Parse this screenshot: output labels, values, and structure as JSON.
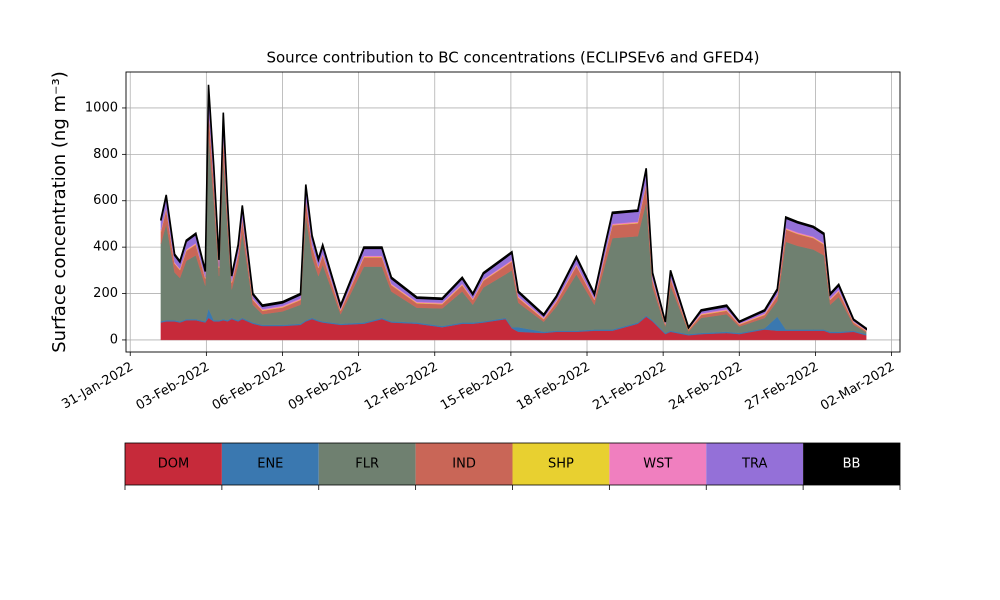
{
  "chart_data": {
    "type": "stacked_area",
    "title": "Source contribution to BC concentrations (ECLIPSEv6 and GFED4)",
    "y_label": "Surface concentration (ng m⁻³)",
    "x": [
      "2022-02-01 05:00",
      "2022-02-01 10:00",
      "2022-02-01 18:00",
      "2022-02-01 23:00",
      "2022-02-02 05:00",
      "2022-02-02 14:00",
      "2022-02-02 23:00",
      "2022-02-03 02:00",
      "2022-02-03 07:00",
      "2022-02-03 12:00",
      "2022-02-03 16:00",
      "2022-02-03 20:00",
      "2022-02-04 00:00",
      "2022-02-04 06:00",
      "2022-02-04 10:00",
      "2022-02-04 20:00",
      "2022-02-05 05:00",
      "2022-02-06 00:00",
      "2022-02-06 17:00",
      "2022-02-06 22:00",
      "2022-02-07 04:00",
      "2022-02-07 10:00",
      "2022-02-07 14:00",
      "2022-02-08 07:00",
      "2022-02-09 05:00",
      "2022-02-09 22:00",
      "2022-02-10 07:00",
      "2022-02-11 07:00",
      "2022-02-12 07:00",
      "2022-02-13 02:00",
      "2022-02-13 12:00",
      "2022-02-13 22:00",
      "2022-02-14 19:00",
      "2022-02-15 01:00",
      "2022-02-15 07:00",
      "2022-02-16 07:00",
      "2022-02-16 19:00",
      "2022-02-17 14:00",
      "2022-02-18 07:00",
      "2022-02-18 17:00",
      "2022-02-19 00:00",
      "2022-02-20 00:00",
      "2022-02-20 08:00",
      "2022-02-20 14:00",
      "2022-02-21 02:00",
      "2022-02-21 07:00",
      "2022-02-22 00:00",
      "2022-02-22 12:00",
      "2022-02-23 12:00",
      "2022-02-24 00:00",
      "2022-02-25 00:00",
      "2022-02-25 12:00",
      "2022-02-25 20:00",
      "2022-02-26 07:00",
      "2022-02-26 22:00",
      "2022-02-27 08:00",
      "2022-02-27 14:00",
      "2022-02-27 22:00",
      "2022-02-28 12:00",
      "2022-03-01 00:00"
    ],
    "series": [
      {
        "name": "DOM",
        "color": "#c62a3a",
        "values": [
          75,
          80,
          80,
          75,
          85,
          85,
          75,
          95,
          80,
          80,
          85,
          80,
          90,
          80,
          90,
          70,
          60,
          60,
          65,
          80,
          90,
          80,
          75,
          65,
          70,
          90,
          75,
          70,
          55,
          70,
          70,
          75,
          90,
          50,
          35,
          30,
          35,
          35,
          40,
          40,
          40,
          70,
          100,
          80,
          25,
          35,
          20,
          25,
          30,
          25,
          45,
          40,
          40,
          40,
          40,
          40,
          30,
          30,
          35,
          20
        ]
      },
      {
        "name": "ENE",
        "color": "#3a78b0",
        "values": [
          5,
          5,
          5,
          5,
          5,
          5,
          5,
          40,
          5,
          5,
          5,
          5,
          5,
          5,
          5,
          5,
          5,
          5,
          5,
          5,
          5,
          5,
          5,
          5,
          5,
          5,
          5,
          5,
          5,
          5,
          5,
          5,
          5,
          5,
          20,
          5,
          5,
          5,
          5,
          5,
          5,
          5,
          5,
          5,
          5,
          5,
          5,
          5,
          5,
          5,
          5,
          60,
          5,
          5,
          5,
          5,
          5,
          5,
          5,
          5
        ]
      },
      {
        "name": "FLR",
        "color": "#6f8070",
        "values": [
          334,
          415,
          206,
          187,
          251,
          275,
          154,
          750,
          518,
          190,
          697,
          395,
          123,
          239,
          369,
          77,
          46,
          58,
          82,
          452,
          262,
          190,
          244,
          41,
          241,
          221,
          129,
          64,
          76,
          134,
          77,
          146,
          188,
          245,
          105,
          43,
          104,
          243,
          107,
          279,
          394,
          372,
          490,
          141,
          28,
          194,
          12,
          65,
          76,
          28,
          45,
          68,
          378,
          361,
          345,
          320,
          117,
          150,
          26,
          8
        ]
      },
      {
        "name": "IND",
        "color": "#c96657",
        "values": [
          52,
          63,
          37,
          34,
          43,
          46,
          30,
          110,
          75,
          35,
          98,
          60,
          28,
          41,
          58,
          20,
          15,
          17,
          20,
          67,
          45,
          35,
          41,
          15,
          40,
          40,
          27,
          19,
          18,
          27,
          20,
          29,
          36,
          38,
          21,
          11,
          19,
          36,
          20,
          41,
          55,
          56,
          74,
          29,
          8,
          30,
          6,
          13,
          15,
          8,
          13,
          22,
          53,
          51,
          49,
          46,
          20,
          24,
          9,
          5
        ]
      },
      {
        "name": "SHP",
        "color": "#e8d030",
        "values": [
          2,
          2,
          2,
          2,
          2,
          2,
          2,
          2,
          2,
          2,
          2,
          2,
          2,
          2,
          2,
          2,
          2,
          2,
          2,
          2,
          2,
          2,
          2,
          2,
          2,
          2,
          2,
          2,
          2,
          2,
          2,
          2,
          2,
          2,
          2,
          2,
          2,
          2,
          2,
          2,
          2,
          2,
          2,
          2,
          2,
          2,
          2,
          2,
          2,
          2,
          2,
          2,
          2,
          2,
          2,
          2,
          2,
          2,
          2,
          2
        ]
      },
      {
        "name": "WST",
        "color": "#f07fbf",
        "values": [
          5,
          5,
          5,
          5,
          5,
          5,
          5,
          5,
          5,
          5,
          5,
          5,
          5,
          5,
          5,
          5,
          5,
          5,
          5,
          5,
          5,
          5,
          5,
          5,
          5,
          5,
          5,
          5,
          5,
          5,
          5,
          5,
          5,
          5,
          5,
          5,
          5,
          5,
          5,
          5,
          5,
          5,
          5,
          5,
          3,
          5,
          3,
          5,
          5,
          3,
          5,
          5,
          5,
          5,
          5,
          5,
          5,
          5,
          3,
          3
        ]
      },
      {
        "name": "TRA",
        "color": "#9470d8",
        "values": [
          42,
          50,
          30,
          27,
          34,
          37,
          24,
          88,
          60,
          28,
          78,
          48,
          22,
          33,
          46,
          16,
          12,
          13,
          16,
          54,
          36,
          28,
          33,
          12,
          32,
          32,
          22,
          15,
          14,
          22,
          16,
          23,
          29,
          30,
          17,
          9,
          15,
          29,
          16,
          33,
          44,
          45,
          59,
          23,
          6,
          24,
          4,
          10,
          12,
          6,
          10,
          18,
          42,
          41,
          39,
          37,
          16,
          19,
          7,
          4
        ]
      },
      {
        "name": "BB",
        "color": "#000000",
        "values": [
          5,
          5,
          5,
          5,
          5,
          5,
          5,
          10,
          5,
          5,
          10,
          5,
          5,
          5,
          5,
          5,
          5,
          5,
          5,
          5,
          5,
          5,
          5,
          5,
          5,
          5,
          5,
          5,
          5,
          5,
          5,
          5,
          5,
          5,
          5,
          5,
          5,
          5,
          5,
          5,
          5,
          5,
          5,
          5,
          3,
          5,
          3,
          5,
          5,
          3,
          5,
          5,
          5,
          5,
          5,
          5,
          5,
          5,
          3,
          3
        ]
      }
    ],
    "xlim": [
      "2022-01-30 20:00",
      "2022-03-02 08:00"
    ],
    "xticks": [
      {
        "value": "2022-01-31",
        "label": "31-Jan-2022"
      },
      {
        "value": "2022-02-03",
        "label": "03-Feb-2022"
      },
      {
        "value": "2022-02-06",
        "label": "06-Feb-2022"
      },
      {
        "value": "2022-02-09",
        "label": "09-Feb-2022"
      },
      {
        "value": "2022-02-12",
        "label": "12-Feb-2022"
      },
      {
        "value": "2022-02-15",
        "label": "15-Feb-2022"
      },
      {
        "value": "2022-02-18",
        "label": "18-Feb-2022"
      },
      {
        "value": "2022-02-21",
        "label": "21-Feb-2022"
      },
      {
        "value": "2022-02-24",
        "label": "24-Feb-2022"
      },
      {
        "value": "2022-02-27",
        "label": "27-Feb-2022"
      },
      {
        "value": "2022-03-02",
        "label": "02-Mar-2022"
      }
    ],
    "ylim": [
      -52,
      1155
    ],
    "yticks": [
      0,
      200,
      400,
      600,
      800,
      1000
    ],
    "grid": true
  }
}
